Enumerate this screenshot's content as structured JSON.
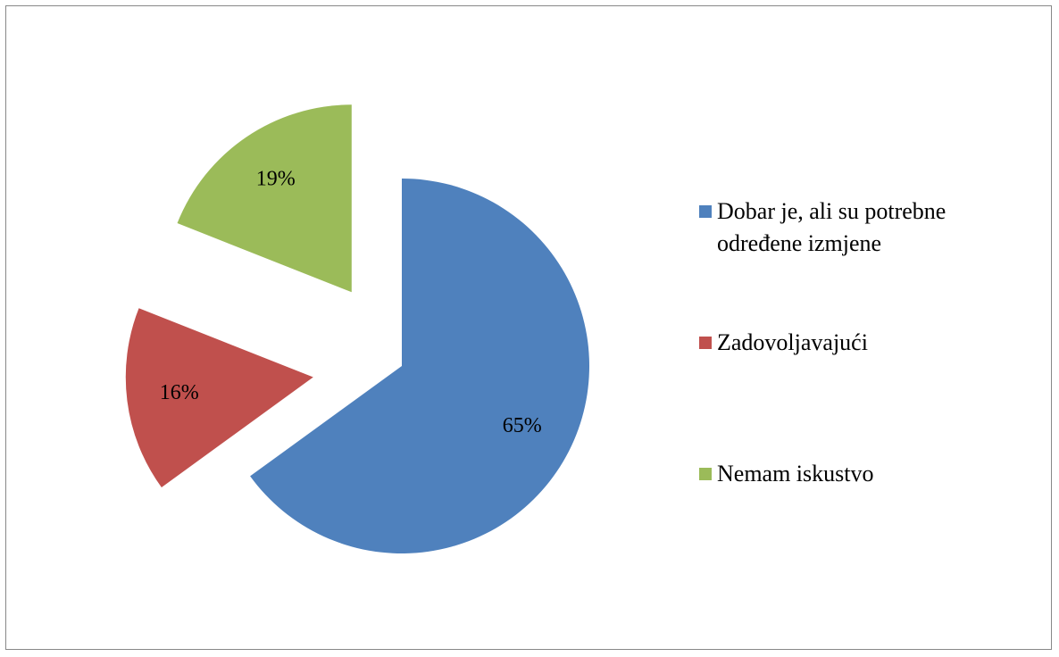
{
  "chart_data": {
    "type": "pie",
    "categories": [
      "Dobar je, ali su potrebne određene izmjene",
      "Zadovoljavajući",
      "Nemam iskustvo"
    ],
    "values": [
      65,
      16,
      19
    ],
    "value_labels": [
      "65%",
      "16%",
      "19%"
    ],
    "colors": [
      "#4f81bd",
      "#c0504d",
      "#9bbb59"
    ],
    "legend": "right"
  }
}
